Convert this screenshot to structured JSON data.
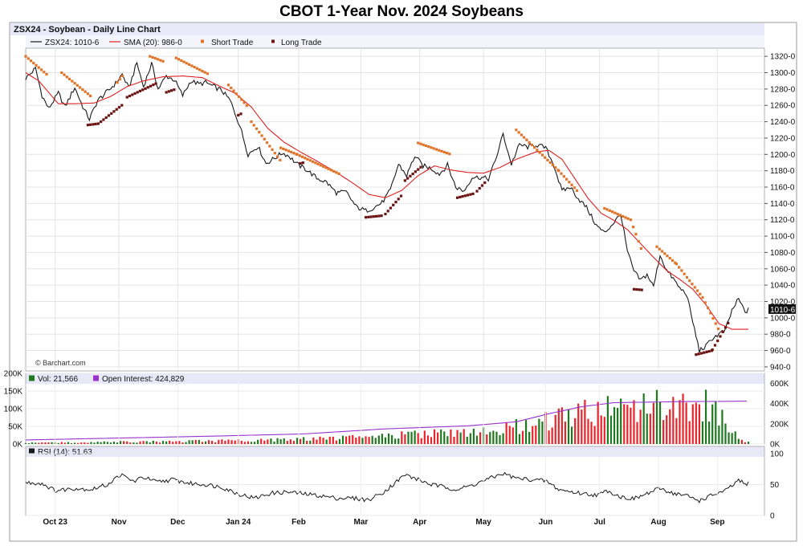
{
  "title": "CBOT 1-Year Nov. 2024 Soybeans",
  "header": {
    "panel_title": "ZSX24 - Soybean - Daily Line Chart",
    "legend_close": "ZSX24: 1010-6",
    "legend_sma": "SMA (20): 986-0",
    "legend_short": "Short Trade",
    "legend_long": "Long Trade",
    "watermark": "© Barchart.com",
    "last_price_label": "1010-6",
    "vol_label": "Vol: 21,566",
    "oi_label": "Open Interest: 424,829",
    "rsi_label": "RSI (14): 51.63"
  },
  "colors": {
    "close_line": "#1a1a1a",
    "sma_line": "#dd2222",
    "short_trade": "#e0742a",
    "long_trade": "#6b1414",
    "vol_up": "#1f7a1f",
    "vol_down": "#e8242a",
    "oi_line": "#9933cc",
    "rsi_line": "#1a1a1a",
    "panel_band": "#e8e8f8"
  },
  "chart_data": [
    {
      "type": "line",
      "panel": "price",
      "x_tick_labels": [
        "Oct 23",
        "Nov",
        "Dec",
        "Jan 24",
        "Feb",
        "Mar",
        "Apr",
        "May",
        "Jun",
        "Jul",
        "Aug",
        "Sep"
      ],
      "x_tick_index": [
        18,
        57,
        93,
        130,
        167,
        205,
        241,
        280,
        318,
        351,
        387,
        423
      ],
      "y_ticks": [
        940,
        960,
        980,
        1000,
        1020,
        1040,
        1060,
        1080,
        1100,
        1120,
        1140,
        1160,
        1180,
        1200,
        1220,
        1240,
        1260,
        1280,
        1300,
        1320
      ],
      "y_tick_labels": [
        "940-0",
        "960-0",
        "980-0",
        "1000-0",
        "1020-0",
        "1040-0",
        "1060-0",
        "1080-0",
        "1100-0",
        "1120-0",
        "1140-0",
        "1160-0",
        "1180-0",
        "1200-0",
        "1220-0",
        "1240-0",
        "1260-0",
        "1280-0",
        "1300-0",
        "1320-0"
      ],
      "ylim": [
        935,
        1330
      ],
      "n_days": 430,
      "close_anchors": [
        [
          0,
          1293
        ],
        [
          6,
          1305
        ],
        [
          10,
          1272
        ],
        [
          14,
          1256
        ],
        [
          20,
          1275
        ],
        [
          24,
          1258
        ],
        [
          30,
          1282
        ],
        [
          35,
          1258
        ],
        [
          39,
          1243
        ],
        [
          44,
          1266
        ],
        [
          50,
          1277
        ],
        [
          55,
          1287
        ],
        [
          59,
          1298
        ],
        [
          63,
          1281
        ],
        [
          68,
          1312
        ],
        [
          72,
          1283
        ],
        [
          77,
          1311
        ],
        [
          81,
          1280
        ],
        [
          86,
          1296
        ],
        [
          91,
          1291
        ],
        [
          96,
          1272
        ],
        [
          101,
          1290
        ],
        [
          106,
          1286
        ],
        [
          110,
          1288
        ],
        [
          115,
          1283
        ],
        [
          120,
          1278
        ],
        [
          125,
          1266
        ],
        [
          131,
          1235
        ],
        [
          136,
          1200
        ],
        [
          142,
          1210
        ],
        [
          147,
          1189
        ],
        [
          152,
          1195
        ],
        [
          157,
          1202
        ],
        [
          161,
          1198
        ],
        [
          166,
          1188
        ],
        [
          172,
          1181
        ],
        [
          178,
          1171
        ],
        [
          184,
          1166
        ],
        [
          190,
          1153
        ],
        [
          196,
          1154
        ],
        [
          202,
          1136
        ],
        [
          208,
          1131
        ],
        [
          213,
          1135
        ],
        [
          218,
          1141
        ],
        [
          223,
          1156
        ],
        [
          228,
          1188
        ],
        [
          233,
          1174
        ],
        [
          238,
          1198
        ],
        [
          243,
          1186
        ],
        [
          248,
          1183
        ],
        [
          253,
          1176
        ],
        [
          258,
          1187
        ],
        [
          263,
          1160
        ],
        [
          268,
          1155
        ],
        [
          273,
          1172
        ],
        [
          278,
          1172
        ],
        [
          283,
          1170
        ],
        [
          287,
          1191
        ],
        [
          292,
          1225
        ],
        [
          297,
          1188
        ],
        [
          302,
          1212
        ],
        [
          307,
          1209
        ],
        [
          312,
          1212
        ],
        [
          318,
          1208
        ],
        [
          323,
          1187
        ],
        [
          328,
          1155
        ],
        [
          333,
          1160
        ],
        [
          338,
          1146
        ],
        [
          343,
          1135
        ],
        [
          349,
          1113
        ],
        [
          354,
          1104
        ],
        [
          359,
          1115
        ],
        [
          364,
          1127
        ],
        [
          368,
          1081
        ],
        [
          372,
          1057
        ],
        [
          376,
          1046
        ],
        [
          380,
          1053
        ],
        [
          384,
          1038
        ],
        [
          388,
          1077
        ],
        [
          392,
          1058
        ],
        [
          396,
          1048
        ],
        [
          400,
          1036
        ],
        [
          404,
          1030
        ],
        [
          408,
          995
        ],
        [
          412,
          960
        ],
        [
          416,
          965
        ],
        [
          420,
          975
        ],
        [
          424,
          980
        ],
        [
          428,
          985
        ],
        [
          432,
          1009
        ],
        [
          436,
          1023
        ],
        [
          440,
          1007
        ],
        [
          442,
          1010
        ]
      ],
      "sma20_anchors": [
        [
          0,
          1300
        ],
        [
          8,
          1290
        ],
        [
          20,
          1262
        ],
        [
          30,
          1262
        ],
        [
          42,
          1263
        ],
        [
          52,
          1271
        ],
        [
          62,
          1283
        ],
        [
          72,
          1290
        ],
        [
          84,
          1295
        ],
        [
          96,
          1296
        ],
        [
          108,
          1294
        ],
        [
          118,
          1284
        ],
        [
          128,
          1275
        ],
        [
          138,
          1258
        ],
        [
          148,
          1232
        ],
        [
          158,
          1215
        ],
        [
          168,
          1203
        ],
        [
          178,
          1192
        ],
        [
          190,
          1178
        ],
        [
          200,
          1165
        ],
        [
          210,
          1151
        ],
        [
          220,
          1147
        ],
        [
          230,
          1156
        ],
        [
          240,
          1174
        ],
        [
          250,
          1186
        ],
        [
          260,
          1181
        ],
        [
          270,
          1178
        ],
        [
          280,
          1177
        ],
        [
          290,
          1184
        ],
        [
          300,
          1194
        ],
        [
          312,
          1203
        ],
        [
          320,
          1205
        ],
        [
          328,
          1194
        ],
        [
          336,
          1170
        ],
        [
          344,
          1146
        ],
        [
          352,
          1128
        ],
        [
          360,
          1119
        ],
        [
          368,
          1108
        ],
        [
          376,
          1091
        ],
        [
          384,
          1074
        ],
        [
          392,
          1058
        ],
        [
          400,
          1047
        ],
        [
          408,
          1035
        ],
        [
          416,
          1016
        ],
        [
          424,
          993
        ],
        [
          432,
          986
        ],
        [
          442,
          986
        ]
      ],
      "short_trade_segments": [
        [
          [
            0,
            1320
          ],
          [
            14,
            1296
          ]
        ],
        [
          [
            22,
            1300
          ],
          [
            40,
            1271
          ]
        ],
        [
          [
            56,
            1288
          ],
          [
            60,
            1298
          ]
        ],
        [
          [
            76,
            1320
          ],
          [
            84,
            1314
          ]
        ],
        [
          [
            92,
            1318
          ],
          [
            112,
            1298
          ]
        ],
        [
          [
            124,
            1285
          ],
          [
            136,
            1258
          ]
        ],
        [
          [
            138,
            1240
          ],
          [
            156,
            1192
          ]
        ],
        [
          [
            156,
            1208
          ],
          [
            166,
            1200
          ]
        ],
        [
          [
            166,
            1200
          ],
          [
            192,
            1176
          ]
        ],
        [
          [
            240,
            1214
          ],
          [
            260,
            1200
          ]
        ],
        [
          [
            300,
            1230
          ],
          [
            326,
            1180
          ]
        ],
        [
          [
            326,
            1180
          ],
          [
            338,
            1154
          ]
        ],
        [
          [
            354,
            1134
          ],
          [
            370,
            1120
          ]
        ],
        [
          [
            370,
            1120
          ],
          [
            378,
            1076
          ]
        ],
        [
          [
            386,
            1087
          ],
          [
            398,
            1066
          ]
        ],
        [
          [
            398,
            1066
          ],
          [
            414,
            1025
          ]
        ],
        [
          [
            414,
            1025
          ],
          [
            424,
            985
          ]
        ]
      ],
      "long_trade_segments": [
        [
          [
            38,
            1236
          ],
          [
            46,
            1238
          ]
        ],
        [
          [
            46,
            1240
          ],
          [
            60,
            1262
          ]
        ],
        [
          [
            62,
            1270
          ],
          [
            80,
            1287
          ]
        ],
        [
          [
            86,
            1276
          ],
          [
            92,
            1280
          ]
        ],
        [
          [
            130,
            1248
          ],
          [
            132,
            1250
          ]
        ],
        [
          [
            168,
            1189
          ],
          [
            170,
            1190
          ]
        ],
        [
          [
            208,
            1123
          ],
          [
            218,
            1125
          ]
        ],
        [
          [
            220,
            1127
          ],
          [
            230,
            1150
          ]
        ],
        [
          [
            232,
            1168
          ],
          [
            242,
            1185
          ]
        ],
        [
          [
            264,
            1147
          ],
          [
            274,
            1152
          ]
        ],
        [
          [
            276,
            1155
          ],
          [
            282,
            1168
          ]
        ],
        [
          [
            372,
            1035
          ],
          [
            378,
            1034
          ]
        ],
        [
          [
            410,
            955
          ],
          [
            420,
            960
          ]
        ],
        [
          [
            420,
            961
          ],
          [
            430,
            995
          ]
        ]
      ]
    },
    {
      "type": "bar",
      "panel": "volume",
      "ylim": [
        0,
        200000
      ],
      "y_ticks": [
        0,
        50000,
        100000,
        150000,
        200000
      ],
      "y_tick_labels": [
        "0K",
        "50K",
        "100K",
        "150K",
        "200K"
      ],
      "right_ylim": [
        0,
        700000
      ],
      "right_ticks": [
        0,
        200000,
        400000,
        600000
      ],
      "right_tick_labels": [
        "0K",
        "200K",
        "400K",
        "600K"
      ],
      "volume_anchors": [
        [
          0,
          3000
        ],
        [
          60,
          6000
        ],
        [
          120,
          9000
        ],
        [
          170,
          14000
        ],
        [
          200,
          18000
        ],
        [
          230,
          26000
        ],
        [
          260,
          30000
        ],
        [
          290,
          45000
        ],
        [
          310,
          55000
        ],
        [
          330,
          75000
        ],
        [
          350,
          95000
        ],
        [
          370,
          100000
        ],
        [
          390,
          110000
        ],
        [
          420,
          110000
        ],
        [
          440,
          5000
        ]
      ],
      "open_interest_anchors": [
        [
          0,
          40000
        ],
        [
          60,
          60000
        ],
        [
          120,
          80000
        ],
        [
          170,
          100000
        ],
        [
          220,
          150000
        ],
        [
          270,
          180000
        ],
        [
          300,
          220000
        ],
        [
          320,
          300000
        ],
        [
          340,
          370000
        ],
        [
          360,
          410000
        ],
        [
          380,
          415000
        ],
        [
          400,
          420000
        ],
        [
          420,
          422000
        ],
        [
          442,
          424829
        ]
      ]
    },
    {
      "type": "line",
      "panel": "rsi",
      "ylim": [
        0,
        100
      ],
      "y_ticks": [
        0,
        50,
        100
      ],
      "y_tick_labels": [
        "0",
        "50",
        "100"
      ],
      "rsi_anchors": [
        [
          0,
          53
        ],
        [
          10,
          52
        ],
        [
          18,
          40
        ],
        [
          30,
          44
        ],
        [
          40,
          42
        ],
        [
          50,
          50
        ],
        [
          58,
          66
        ],
        [
          66,
          55
        ],
        [
          72,
          62
        ],
        [
          80,
          54
        ],
        [
          90,
          58
        ],
        [
          100,
          52
        ],
        [
          110,
          50
        ],
        [
          120,
          46
        ],
        [
          130,
          35
        ],
        [
          140,
          28
        ],
        [
          150,
          36
        ],
        [
          160,
          38
        ],
        [
          170,
          35
        ],
        [
          180,
          32
        ],
        [
          190,
          28
        ],
        [
          200,
          28
        ],
        [
          210,
          25
        ],
        [
          220,
          40
        ],
        [
          232,
          66
        ],
        [
          240,
          58
        ],
        [
          248,
          50
        ],
        [
          256,
          46
        ],
        [
          264,
          42
        ],
        [
          272,
          48
        ],
        [
          280,
          56
        ],
        [
          292,
          68
        ],
        [
          300,
          60
        ],
        [
          310,
          58
        ],
        [
          318,
          56
        ],
        [
          326,
          42
        ],
        [
          334,
          38
        ],
        [
          342,
          35
        ],
        [
          350,
          33
        ],
        [
          356,
          40
        ],
        [
          364,
          30
        ],
        [
          372,
          27
        ],
        [
          380,
          35
        ],
        [
          388,
          44
        ],
        [
          396,
          36
        ],
        [
          404,
          32
        ],
        [
          412,
          24
        ],
        [
          420,
          33
        ],
        [
          428,
          40
        ],
        [
          436,
          56
        ],
        [
          440,
          51
        ],
        [
          442,
          51.63
        ]
      ]
    }
  ]
}
